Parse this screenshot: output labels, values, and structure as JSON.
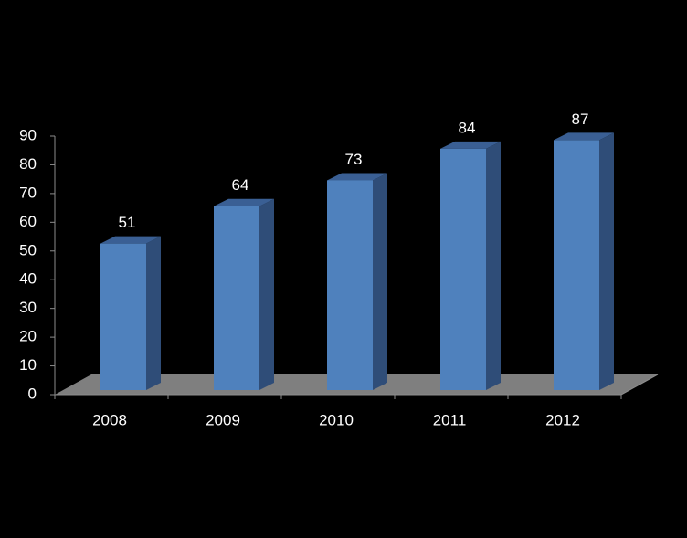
{
  "chart_data": {
    "type": "bar3d",
    "categories": [
      "2008",
      "2009",
      "2010",
      "2011",
      "2012"
    ],
    "values": [
      51,
      64,
      73,
      84,
      87
    ],
    "color": "#4f81bd",
    "ylim": [
      0,
      90
    ],
    "yticks": [
      0,
      10,
      20,
      30,
      40,
      50,
      60,
      70,
      80,
      90
    ]
  }
}
